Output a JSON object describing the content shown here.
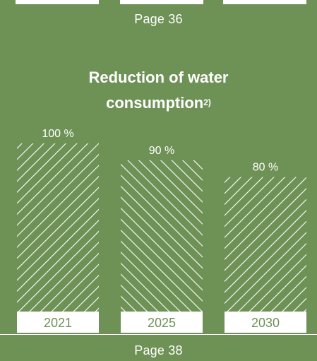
{
  "header": {
    "prev_page_label": "Page 36"
  },
  "chart_title": {
    "main": "Reduction of water consumption",
    "footnote": "2)"
  },
  "footer": {
    "next_page_label": "Page 38"
  },
  "colors": {
    "background": "#6e9156",
    "foreground": "#ffffff"
  },
  "chart_data": {
    "type": "bar",
    "title": "Reduction of water consumption",
    "categories": [
      "2021",
      "2025",
      "2030"
    ],
    "values": [
      100,
      90,
      80
    ],
    "value_labels": [
      "100 %",
      "90 %",
      "80 %"
    ],
    "unit": "%",
    "ylim": [
      0,
      100
    ],
    "xlabel": "",
    "ylabel": "",
    "grid": false,
    "legend": "none"
  }
}
